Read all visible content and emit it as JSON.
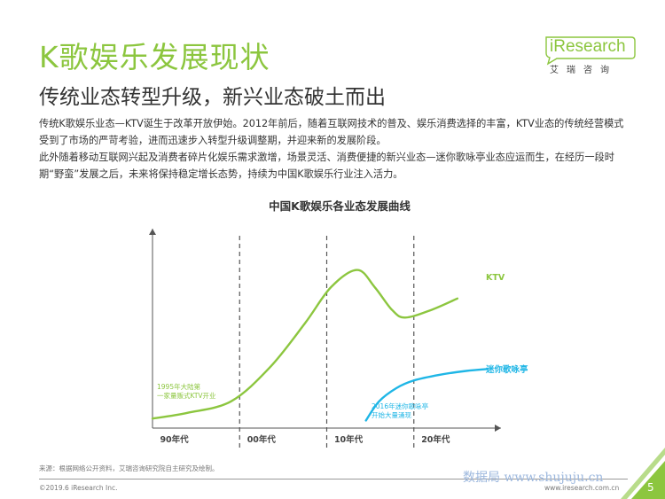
{
  "header": {
    "title": "K歌娱乐发展现状",
    "subtitle": "传统业态转型升级，新兴业态破土而出",
    "logo_text": "iResearch",
    "logo_cn": "艾瑞咨询"
  },
  "body": {
    "para1": "传统K歌娱乐业态—KTV诞生于改革开放伊始。2012年前后，随着互联网技术的普及、娱乐消费选择的丰富，KTV业态的传统经营模式受到了市场的严苛考验，进而迅速步入转型升级调整期，并迎来新的发展阶段。",
    "para2": "此外随着移动互联网兴起及消费者碎片化娱乐需求激增，场景灵活、消费便捷的新兴业态—迷你歌咏亭业态应运而生，在经历一段时期“野蛮”发展之后，未来将保持稳定增长态势，持续为中国K歌娱乐行业注入活力。"
  },
  "chart_data": {
    "type": "line",
    "title": "中国K歌娱乐各业态发展曲线",
    "xlabel": "",
    "ylabel": "",
    "categories": [
      "90年代",
      "00年代",
      "10年代",
      "20年代"
    ],
    "series": [
      {
        "name": "KTV",
        "color": "#8cc63f",
        "points": [
          [
            0.0,
            0.05
          ],
          [
            0.4,
            0.08
          ],
          [
            0.9,
            0.14
          ],
          [
            1.35,
            0.32
          ],
          [
            1.75,
            0.55
          ],
          [
            2.05,
            0.74
          ],
          [
            2.35,
            0.83
          ],
          [
            2.55,
            0.74
          ],
          [
            2.75,
            0.62
          ],
          [
            2.9,
            0.58
          ],
          [
            3.2,
            0.62
          ],
          [
            3.5,
            0.68
          ]
        ]
      },
      {
        "name": "迷你歌咏亭",
        "color": "#1fb6e6",
        "points": [
          [
            2.45,
            0.04
          ],
          [
            2.6,
            0.14
          ],
          [
            2.8,
            0.21
          ],
          [
            3.0,
            0.25
          ],
          [
            3.3,
            0.28
          ],
          [
            3.6,
            0.3
          ],
          [
            3.85,
            0.31
          ]
        ]
      }
    ],
    "annotations": [
      "1995年大陆第一家量贩式KTV开业",
      "2016年迷你歌咏亭开始大量涌现"
    ],
    "grid": false
  },
  "footer": {
    "source": "来源：根据网络公开资料，艾瑞咨询研究院自主研究及绘制。",
    "copyright": "©2019.6 iResearch Inc.",
    "website": "www.iresearch.com.cn",
    "watermark": "数据局 www.shujuju.cn",
    "page": "5"
  },
  "colors": {
    "accent": "#8cc63f",
    "mini_ktv": "#1fb6e6",
    "corner": "#8cc63f"
  }
}
